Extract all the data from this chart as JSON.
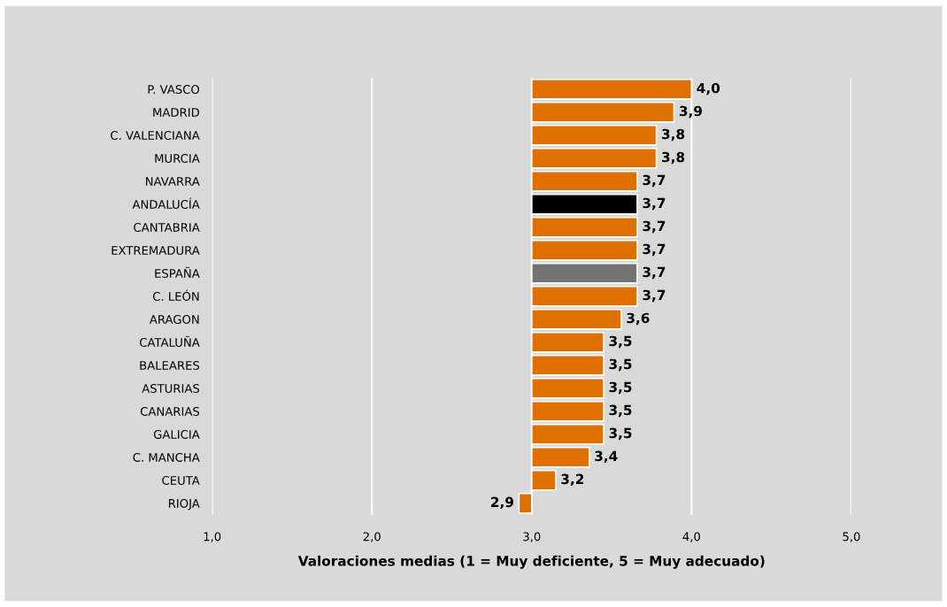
{
  "chart_data": {
    "type": "bar",
    "orientation": "horizontal",
    "categories": [
      "P. VASCO",
      "MADRID",
      "C. VALENCIANA",
      "MURCIA",
      "NAVARRA",
      "ANDALUCÍA",
      "CANTABRIA",
      "EXTREMADURA",
      "ESPAÑA",
      "C. LEÓN",
      "ARAGON",
      "CATALUÑA",
      "BALEARES",
      "ASTURIAS",
      "CANARIAS",
      "GALICIA",
      "C. MANCHA",
      "CEUTA",
      "RIOJA"
    ],
    "base": [
      3.0,
      3.0,
      3.0,
      3.0,
      3.0,
      3.0,
      3.0,
      3.0,
      3.0,
      3.0,
      3.0,
      3.0,
      3.0,
      3.0,
      3.0,
      3.0,
      3.0,
      3.0,
      3.0
    ],
    "values": [
      1.0,
      0.89,
      0.78,
      0.78,
      0.66,
      0.66,
      0.66,
      0.66,
      0.66,
      0.66,
      0.56,
      0.45,
      0.45,
      0.45,
      0.45,
      0.45,
      0.36,
      0.15,
      -0.08
    ],
    "value_labels": [
      "4,0",
      "3,9",
      "3,8",
      "3,8",
      "3,7",
      "3,7",
      "3,7",
      "3,7",
      "3,7",
      "3,7",
      "3,6",
      "3,5",
      "3,5",
      "3,5",
      "3,5",
      "3,5",
      "3,4",
      "3,2",
      "2,9"
    ],
    "colors": [
      "#df7000",
      "#df7000",
      "#df7000",
      "#df7000",
      "#df7000",
      "#000000",
      "#df7000",
      "#df7000",
      "#737373",
      "#df7000",
      "#df7000",
      "#df7000",
      "#df7000",
      "#df7000",
      "#df7000",
      "#df7000",
      "#df7000",
      "#df7000",
      "#df7000"
    ],
    "xlim": [
      1.0,
      5.0
    ],
    "xticks": [
      {
        "value": 1.0,
        "label": "1,0"
      },
      {
        "value": 2.0,
        "label": "2,0"
      },
      {
        "value": 3.0,
        "label": "3,0"
      },
      {
        "value": 4.0,
        "label": "4,0"
      },
      {
        "value": 5.0,
        "label": "5,0"
      }
    ],
    "xlabel": "Valoraciones medias (1 = Muy deficiente, 5 = Muy adecuado)",
    "grid": "x"
  }
}
